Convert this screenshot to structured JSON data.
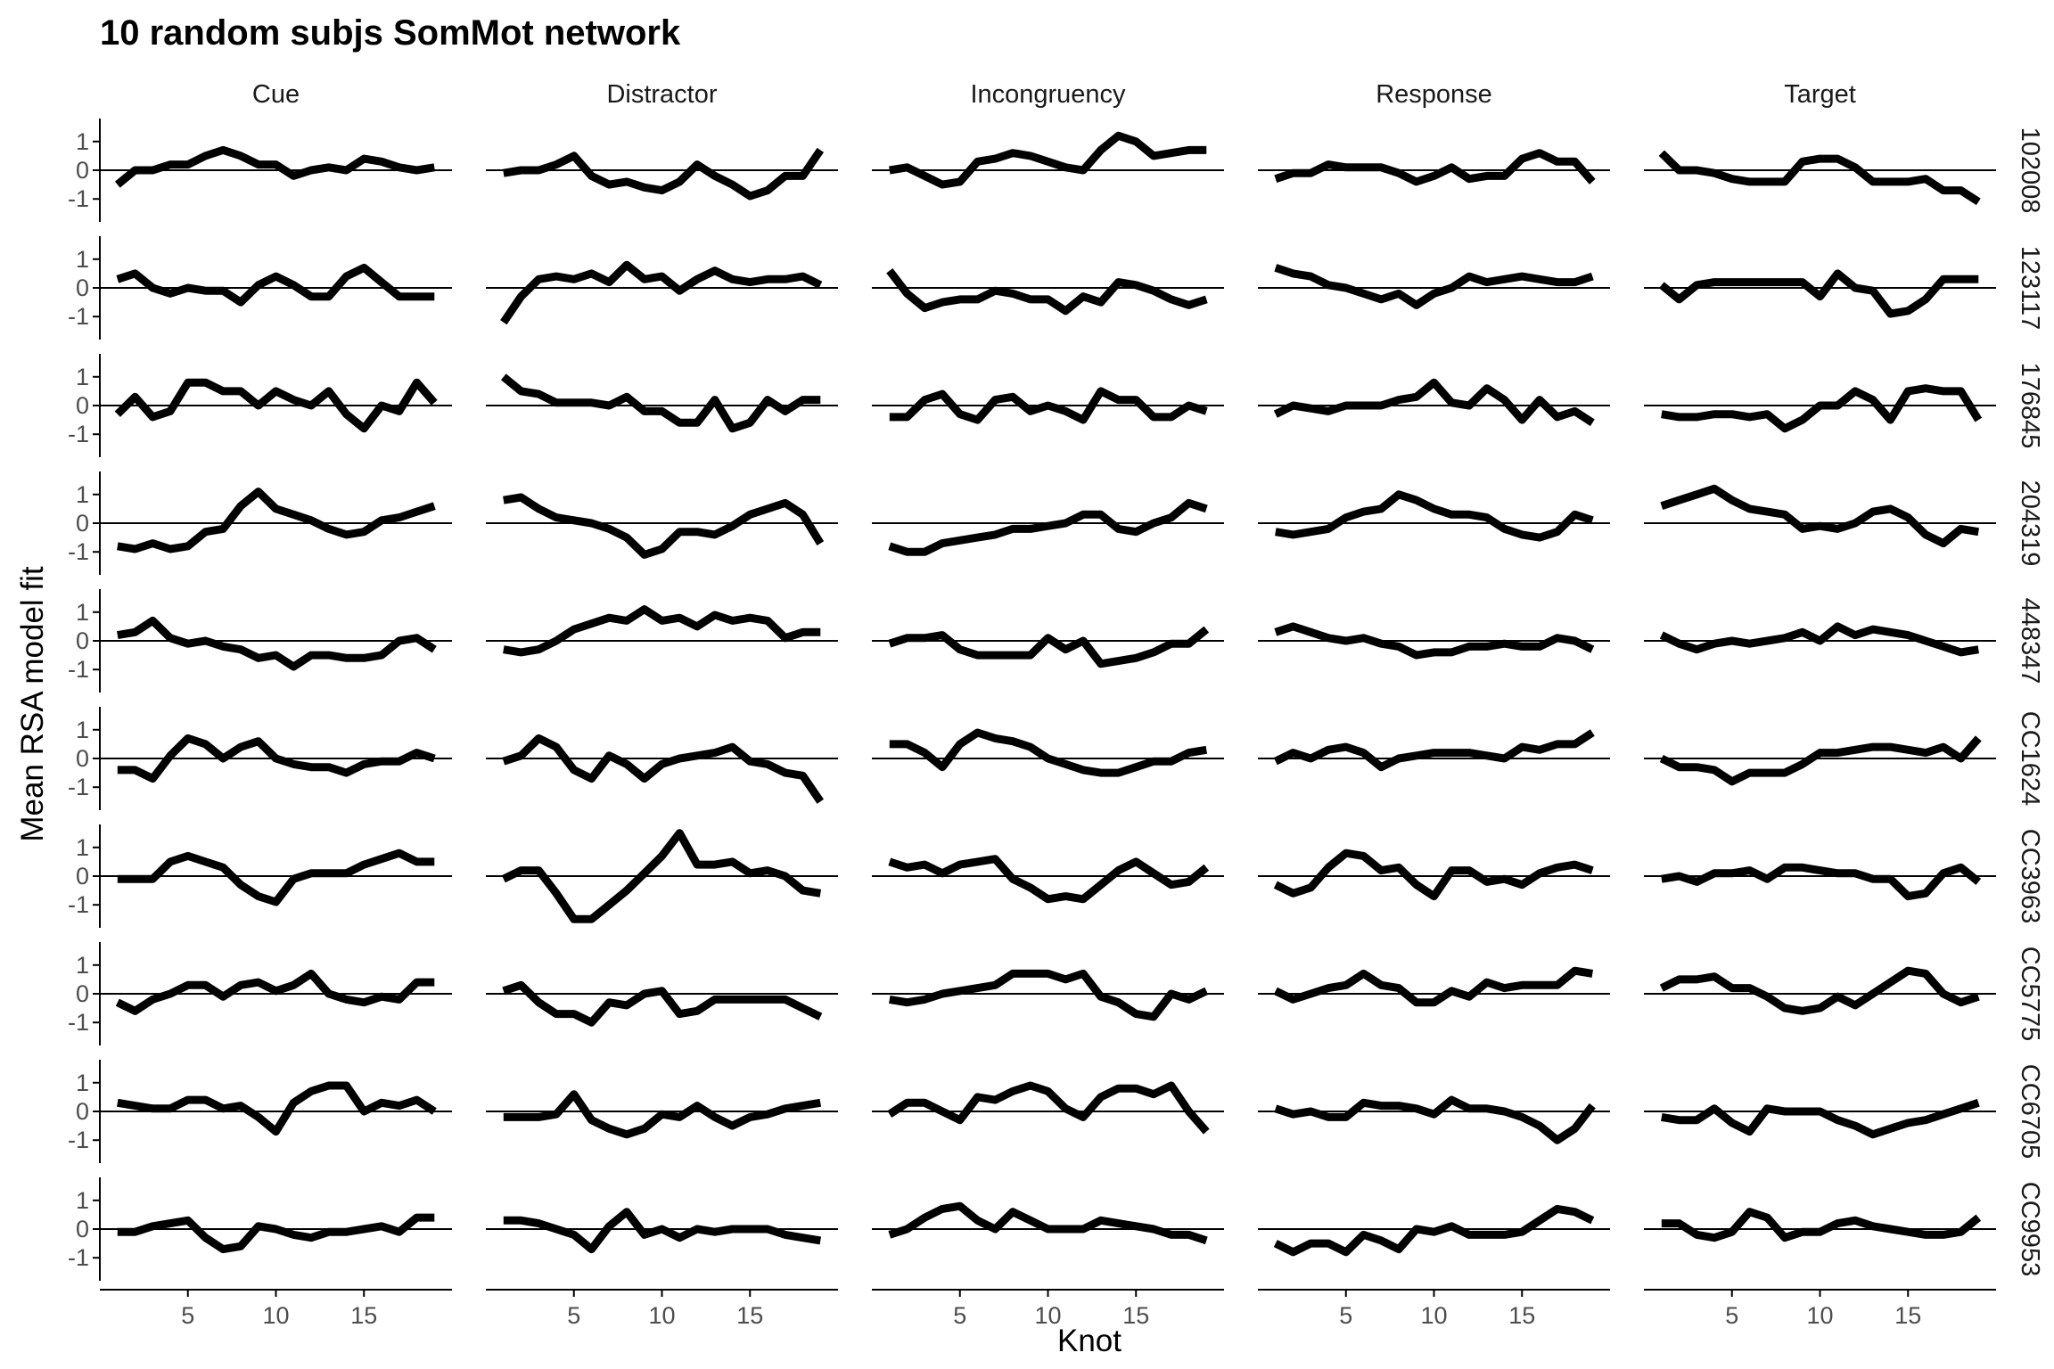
{
  "chart_data": {
    "type": "line",
    "title": "10 random subjs SomMot network",
    "xlabel": "Knot",
    "ylabel": "Mean RSA model fit",
    "xlim": [
      0,
      20
    ],
    "ylim": [
      -1.8,
      1.8
    ],
    "x_ticks": [
      5,
      10,
      15
    ],
    "y_ticks": [
      1,
      0,
      -1
    ],
    "columns": [
      "Cue",
      "Distractor",
      "Incongruency",
      "Response",
      "Target"
    ],
    "rows": [
      "102008",
      "123117",
      "176845",
      "204319",
      "448347",
      "CC1624",
      "CC3963",
      "CC5775",
      "CC6705",
      "CC9953"
    ],
    "x": [
      1,
      2,
      3,
      4,
      5,
      6,
      7,
      8,
      9,
      10,
      11,
      12,
      13,
      14,
      15,
      16,
      17,
      18,
      19
    ],
    "series": [
      [
        [
          -0.5,
          0.0,
          0.0,
          0.2,
          0.2,
          0.5,
          0.7,
          0.5,
          0.2,
          0.2,
          -0.2,
          0.0,
          0.1,
          0.0,
          0.4,
          0.3,
          0.1,
          0.0,
          0.1
        ],
        [
          -0.1,
          0.0,
          0.0,
          0.2,
          0.5,
          -0.2,
          -0.5,
          -0.4,
          -0.6,
          -0.7,
          -0.4,
          0.2,
          -0.2,
          -0.5,
          -0.9,
          -0.7,
          -0.2,
          -0.2,
          0.7
        ],
        [
          0.0,
          0.1,
          -0.2,
          -0.5,
          -0.4,
          0.3,
          0.4,
          0.6,
          0.5,
          0.3,
          0.1,
          0.0,
          0.7,
          1.2,
          1.0,
          0.5,
          0.6,
          0.7,
          0.7
        ],
        [
          -0.3,
          -0.1,
          -0.1,
          0.2,
          0.1,
          0.1,
          0.1,
          -0.1,
          -0.4,
          -0.2,
          0.1,
          -0.3,
          -0.2,
          -0.2,
          0.4,
          0.6,
          0.3,
          0.3,
          -0.4
        ],
        [
          0.6,
          0.0,
          0.0,
          -0.1,
          -0.3,
          -0.4,
          -0.4,
          -0.4,
          0.3,
          0.4,
          0.4,
          0.1,
          -0.4,
          -0.4,
          -0.4,
          -0.3,
          -0.7,
          -0.7,
          -1.1
        ]
      ],
      [
        [
          0.3,
          0.5,
          0.0,
          -0.2,
          0.0,
          -0.1,
          -0.1,
          -0.5,
          0.1,
          0.4,
          0.1,
          -0.3,
          -0.3,
          0.4,
          0.7,
          0.2,
          -0.3,
          -0.3,
          -0.3
        ],
        [
          -1.2,
          -0.3,
          0.3,
          0.4,
          0.3,
          0.5,
          0.2,
          0.8,
          0.3,
          0.4,
          -0.1,
          0.3,
          0.6,
          0.3,
          0.2,
          0.3,
          0.3,
          0.4,
          0.1
        ],
        [
          0.6,
          -0.2,
          -0.7,
          -0.5,
          -0.4,
          -0.4,
          -0.1,
          -0.2,
          -0.4,
          -0.4,
          -0.8,
          -0.3,
          -0.5,
          0.2,
          0.1,
          -0.1,
          -0.4,
          -0.6,
          -0.4
        ],
        [
          0.7,
          0.5,
          0.4,
          0.1,
          0.0,
          -0.2,
          -0.4,
          -0.2,
          -0.6,
          -0.2,
          0.0,
          0.4,
          0.2,
          0.3,
          0.4,
          0.3,
          0.2,
          0.2,
          0.4
        ],
        [
          0.1,
          -0.4,
          0.1,
          0.2,
          0.2,
          0.2,
          0.2,
          0.2,
          0.2,
          -0.3,
          0.5,
          0.0,
          -0.1,
          -0.9,
          -0.8,
          -0.4,
          0.3,
          0.3,
          0.3
        ]
      ],
      [
        [
          -0.3,
          0.3,
          -0.4,
          -0.2,
          0.8,
          0.8,
          0.5,
          0.5,
          0.0,
          0.5,
          0.2,
          0.0,
          0.5,
          -0.3,
          -0.8,
          0.0,
          -0.2,
          0.8,
          0.1
        ],
        [
          1.0,
          0.5,
          0.4,
          0.1,
          0.1,
          0.1,
          0.0,
          0.3,
          -0.2,
          -0.2,
          -0.6,
          -0.6,
          0.2,
          -0.8,
          -0.6,
          0.2,
          -0.2,
          0.2,
          0.2
        ],
        [
          -0.4,
          -0.4,
          0.2,
          0.4,
          -0.3,
          -0.5,
          0.2,
          0.3,
          -0.2,
          0.0,
          -0.2,
          -0.5,
          0.5,
          0.2,
          0.2,
          -0.4,
          -0.4,
          0.0,
          -0.2
        ],
        [
          -0.3,
          0.0,
          -0.1,
          -0.2,
          0.0,
          0.0,
          0.0,
          0.2,
          0.3,
          0.8,
          0.1,
          0.0,
          0.6,
          0.2,
          -0.5,
          0.2,
          -0.4,
          -0.2,
          -0.6
        ],
        [
          -0.3,
          -0.4,
          -0.4,
          -0.3,
          -0.3,
          -0.4,
          -0.3,
          -0.8,
          -0.5,
          0.0,
          0.0,
          0.5,
          0.2,
          -0.5,
          0.5,
          0.6,
          0.5,
          0.5,
          -0.5
        ]
      ],
      [
        [
          -0.8,
          -0.9,
          -0.7,
          -0.9,
          -0.8,
          -0.3,
          -0.2,
          0.6,
          1.1,
          0.5,
          0.3,
          0.1,
          -0.2,
          -0.4,
          -0.3,
          0.1,
          0.2,
          0.4,
          0.6
        ],
        [
          0.8,
          0.9,
          0.5,
          0.2,
          0.1,
          0.0,
          -0.2,
          -0.5,
          -1.1,
          -0.9,
          -0.3,
          -0.3,
          -0.4,
          -0.1,
          0.3,
          0.5,
          0.7,
          0.3,
          -0.7
        ],
        [
          -0.8,
          -1.0,
          -1.0,
          -0.7,
          -0.6,
          -0.5,
          -0.4,
          -0.2,
          -0.2,
          -0.1,
          0.0,
          0.3,
          0.3,
          -0.2,
          -0.3,
          0.0,
          0.2,
          0.7,
          0.5
        ],
        [
          -0.3,
          -0.4,
          -0.3,
          -0.2,
          0.2,
          0.4,
          0.5,
          1.0,
          0.8,
          0.5,
          0.3,
          0.3,
          0.2,
          -0.2,
          -0.4,
          -0.5,
          -0.3,
          0.3,
          0.1
        ],
        [
          0.6,
          0.8,
          1.0,
          1.2,
          0.8,
          0.5,
          0.4,
          0.3,
          -0.2,
          -0.1,
          -0.2,
          0.0,
          0.4,
          0.5,
          0.2,
          -0.4,
          -0.7,
          -0.2,
          -0.3
        ]
      ],
      [
        [
          0.2,
          0.3,
          0.7,
          0.1,
          -0.1,
          0.0,
          -0.2,
          -0.3,
          -0.6,
          -0.5,
          -0.9,
          -0.5,
          -0.5,
          -0.6,
          -0.6,
          -0.5,
          0.0,
          0.1,
          -0.3
        ],
        [
          -0.3,
          -0.4,
          -0.3,
          0.0,
          0.4,
          0.6,
          0.8,
          0.7,
          1.1,
          0.7,
          0.8,
          0.5,
          0.9,
          0.7,
          0.8,
          0.7,
          0.1,
          0.3,
          0.3
        ],
        [
          -0.1,
          0.1,
          0.1,
          0.2,
          -0.3,
          -0.5,
          -0.5,
          -0.5,
          -0.5,
          0.1,
          -0.3,
          0.0,
          -0.8,
          -0.7,
          -0.6,
          -0.4,
          -0.1,
          -0.1,
          0.4
        ],
        [
          0.3,
          0.5,
          0.3,
          0.1,
          0.0,
          0.1,
          -0.1,
          -0.2,
          -0.5,
          -0.4,
          -0.4,
          -0.2,
          -0.2,
          -0.1,
          -0.2,
          -0.2,
          0.1,
          0.0,
          -0.3
        ],
        [
          0.2,
          -0.1,
          -0.3,
          -0.1,
          0.0,
          -0.1,
          0.0,
          0.1,
          0.3,
          0.0,
          0.5,
          0.2,
          0.4,
          0.3,
          0.2,
          0.0,
          -0.2,
          -0.4,
          -0.3
        ]
      ],
      [
        [
          -0.4,
          -0.4,
          -0.7,
          0.1,
          0.7,
          0.5,
          0.0,
          0.4,
          0.6,
          0.0,
          -0.2,
          -0.3,
          -0.3,
          -0.5,
          -0.2,
          -0.1,
          -0.1,
          0.2,
          0.0
        ],
        [
          -0.1,
          0.1,
          0.7,
          0.4,
          -0.4,
          -0.7,
          0.1,
          -0.2,
          -0.7,
          -0.2,
          0.0,
          0.1,
          0.2,
          0.4,
          -0.1,
          -0.2,
          -0.5,
          -0.6,
          -1.5
        ],
        [
          0.5,
          0.5,
          0.2,
          -0.3,
          0.5,
          0.9,
          0.7,
          0.6,
          0.4,
          0.0,
          -0.2,
          -0.4,
          -0.5,
          -0.5,
          -0.3,
          -0.1,
          -0.1,
          0.2,
          0.3
        ],
        [
          -0.1,
          0.2,
          0.0,
          0.3,
          0.4,
          0.2,
          -0.3,
          0.0,
          0.1,
          0.2,
          0.2,
          0.2,
          0.1,
          0.0,
          0.4,
          0.3,
          0.5,
          0.5,
          0.9
        ],
        [
          0.0,
          -0.3,
          -0.3,
          -0.4,
          -0.8,
          -0.5,
          -0.5,
          -0.5,
          -0.2,
          0.2,
          0.2,
          0.3,
          0.4,
          0.4,
          0.3,
          0.2,
          0.4,
          0.0,
          0.7
        ]
      ],
      [
        [
          -0.1,
          -0.1,
          -0.1,
          0.5,
          0.7,
          0.5,
          0.3,
          -0.3,
          -0.7,
          -0.9,
          -0.1,
          0.1,
          0.1,
          0.1,
          0.4,
          0.6,
          0.8,
          0.5,
          0.5
        ],
        [
          -0.1,
          0.2,
          0.2,
          -0.6,
          -1.5,
          -1.5,
          -1.0,
          -0.5,
          0.1,
          0.7,
          1.5,
          0.4,
          0.4,
          0.5,
          0.1,
          0.2,
          0.0,
          -0.5,
          -0.6
        ],
        [
          0.5,
          0.3,
          0.4,
          0.1,
          0.4,
          0.5,
          0.6,
          -0.1,
          -0.4,
          -0.8,
          -0.7,
          -0.8,
          -0.3,
          0.2,
          0.5,
          0.1,
          -0.3,
          -0.2,
          0.3
        ],
        [
          -0.3,
          -0.6,
          -0.4,
          0.3,
          0.8,
          0.7,
          0.2,
          0.3,
          -0.3,
          -0.7,
          0.2,
          0.2,
          -0.2,
          -0.1,
          -0.3,
          0.1,
          0.3,
          0.4,
          0.2
        ],
        [
          -0.1,
          0.0,
          -0.2,
          0.1,
          0.1,
          0.2,
          -0.1,
          0.3,
          0.3,
          0.2,
          0.1,
          0.1,
          -0.1,
          -0.1,
          -0.7,
          -0.6,
          0.1,
          0.3,
          -0.2
        ]
      ],
      [
        [
          -0.3,
          -0.6,
          -0.2,
          0.0,
          0.3,
          0.3,
          -0.1,
          0.3,
          0.4,
          0.1,
          0.3,
          0.7,
          0.0,
          -0.2,
          -0.3,
          -0.1,
          -0.2,
          0.4,
          0.4
        ],
        [
          0.1,
          0.3,
          -0.3,
          -0.7,
          -0.7,
          -1.0,
          -0.3,
          -0.4,
          0.0,
          0.1,
          -0.7,
          -0.6,
          -0.2,
          -0.2,
          -0.2,
          -0.2,
          -0.2,
          -0.5,
          -0.8
        ],
        [
          -0.2,
          -0.3,
          -0.2,
          0.0,
          0.1,
          0.2,
          0.3,
          0.7,
          0.7,
          0.7,
          0.5,
          0.7,
          -0.1,
          -0.3,
          -0.7,
          -0.8,
          0.0,
          -0.2,
          0.1
        ],
        [
          0.1,
          -0.2,
          0.0,
          0.2,
          0.3,
          0.7,
          0.3,
          0.2,
          -0.3,
          -0.3,
          0.1,
          -0.1,
          0.4,
          0.2,
          0.3,
          0.3,
          0.3,
          0.8,
          0.7
        ],
        [
          0.2,
          0.5,
          0.5,
          0.6,
          0.2,
          0.2,
          -0.1,
          -0.5,
          -0.6,
          -0.5,
          -0.1,
          -0.4,
          0.0,
          0.4,
          0.8,
          0.7,
          0.0,
          -0.3,
          -0.1
        ]
      ],
      [
        [
          0.3,
          0.2,
          0.1,
          0.1,
          0.4,
          0.4,
          0.1,
          0.2,
          -0.2,
          -0.7,
          0.3,
          0.7,
          0.9,
          0.9,
          0.0,
          0.3,
          0.2,
          0.4,
          0.0
        ],
        [
          -0.2,
          -0.2,
          -0.2,
          -0.1,
          0.6,
          -0.3,
          -0.6,
          -0.8,
          -0.6,
          -0.1,
          -0.2,
          0.2,
          -0.2,
          -0.5,
          -0.2,
          -0.1,
          0.1,
          0.2,
          0.3
        ],
        [
          -0.1,
          0.3,
          0.3,
          0.0,
          -0.3,
          0.5,
          0.4,
          0.7,
          0.9,
          0.7,
          0.1,
          -0.2,
          0.5,
          0.8,
          0.8,
          0.6,
          0.9,
          0.0,
          -0.7
        ],
        [
          0.1,
          -0.1,
          0.0,
          -0.2,
          -0.2,
          0.3,
          0.2,
          0.2,
          0.1,
          -0.1,
          0.4,
          0.1,
          0.1,
          0.0,
          -0.2,
          -0.5,
          -1.0,
          -0.6,
          0.2
        ],
        [
          -0.2,
          -0.3,
          -0.3,
          0.1,
          -0.4,
          -0.7,
          0.1,
          0.0,
          0.0,
          0.0,
          -0.3,
          -0.5,
          -0.8,
          -0.6,
          -0.4,
          -0.3,
          -0.1,
          0.1,
          0.3
        ]
      ],
      [
        [
          -0.1,
          -0.1,
          0.1,
          0.2,
          0.3,
          -0.3,
          -0.7,
          -0.6,
          0.1,
          0.0,
          -0.2,
          -0.3,
          -0.1,
          -0.1,
          0.0,
          0.1,
          -0.1,
          0.4,
          0.4
        ],
        [
          0.3,
          0.3,
          0.2,
          0.0,
          -0.2,
          -0.7,
          0.1,
          0.6,
          -0.2,
          0.0,
          -0.3,
          0.0,
          -0.1,
          0.0,
          0.0,
          0.0,
          -0.2,
          -0.3,
          -0.4
        ],
        [
          -0.2,
          0.0,
          0.4,
          0.7,
          0.8,
          0.3,
          0.0,
          0.6,
          0.3,
          0.0,
          0.0,
          0.0,
          0.3,
          0.2,
          0.1,
          0.0,
          -0.2,
          -0.2,
          -0.4
        ],
        [
          -0.5,
          -0.8,
          -0.5,
          -0.5,
          -0.8,
          -0.2,
          -0.4,
          -0.7,
          0.0,
          -0.1,
          0.1,
          -0.2,
          -0.2,
          -0.2,
          -0.1,
          0.3,
          0.7,
          0.6,
          0.3
        ],
        [
          0.2,
          0.2,
          -0.2,
          -0.3,
          -0.1,
          0.6,
          0.4,
          -0.3,
          -0.1,
          -0.1,
          0.2,
          0.3,
          0.1,
          0.0,
          -0.1,
          -0.2,
          -0.2,
          -0.1,
          0.4
        ]
      ]
    ]
  }
}
